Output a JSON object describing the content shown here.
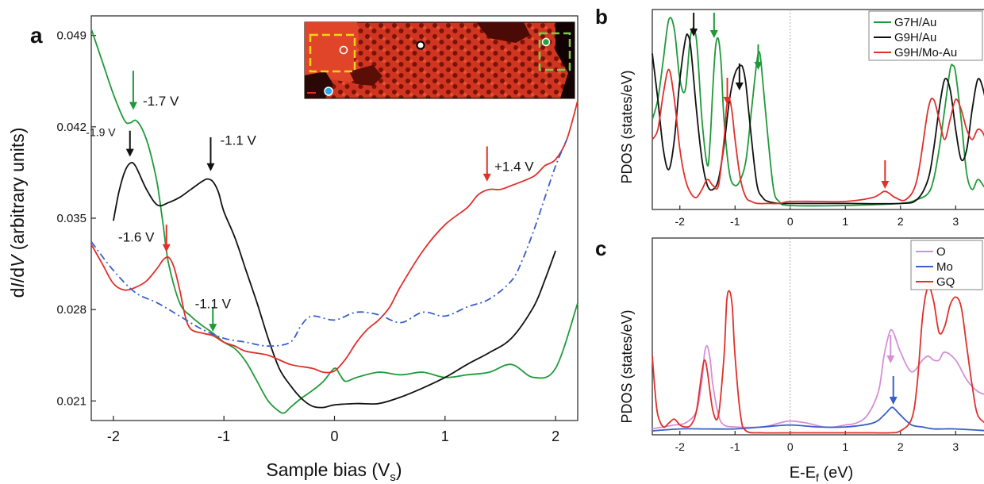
{
  "colors": {
    "green": "#1f9a3a",
    "black": "#111111",
    "red": "#e0302b",
    "blue": "#3a5fc8",
    "violet": "#d68fd6",
    "inset_bg": "#d63a22"
  },
  "chart_data": [
    {
      "id": "a",
      "panel_label": "a",
      "type": "line",
      "xlabel_main": "Sample bias (V",
      "xlabel_sub": "s",
      "xlabel_close": ")",
      "ylabel_pre": "d",
      "ylabel_I": "I",
      "ylabel_mid": "/d",
      "ylabel_V": "V",
      "ylabel_post": " (arbitrary units)",
      "xlim": [
        -2.2,
        2.2
      ],
      "ylim": [
        0.0195,
        0.0505
      ],
      "xticks": [
        -2,
        -1,
        0,
        1,
        2
      ],
      "xtick_labels": [
        "-2",
        "-1",
        "0",
        "1",
        "2"
      ],
      "yticks": [
        0.021,
        0.028,
        0.035,
        0.042,
        0.049
      ],
      "ytick_labels": [
        "0.021",
        "0.028",
        "0.035",
        "0.042",
        "0.049"
      ],
      "series": [
        {
          "color": "green",
          "style": "solid",
          "x": [
            -2.2,
            -2.1,
            -2.0,
            -1.9,
            -1.85,
            -1.8,
            -1.75,
            -1.7,
            -1.65,
            -1.6,
            -1.55,
            -1.5,
            -1.4,
            -1.3,
            -1.2,
            -1.1,
            -1.0,
            -0.9,
            -0.8,
            -0.7,
            -0.6,
            -0.5,
            -0.45,
            -0.4,
            -0.3,
            -0.2,
            -0.1,
            0.0,
            0.05,
            0.1,
            0.2,
            0.4,
            0.6,
            0.8,
            1.0,
            1.2,
            1.4,
            1.6,
            1.8,
            2.0,
            2.2
          ],
          "y": [
            0.0495,
            0.047,
            0.0445,
            0.0425,
            0.0423,
            0.0425,
            0.042,
            0.041,
            0.0395,
            0.0375,
            0.0345,
            0.0315,
            0.0285,
            0.0275,
            0.0268,
            0.0262,
            0.0255,
            0.025,
            0.024,
            0.0225,
            0.021,
            0.0202,
            0.0201,
            0.0205,
            0.0212,
            0.0218,
            0.0225,
            0.0235,
            0.023,
            0.0225,
            0.0228,
            0.0232,
            0.023,
            0.0232,
            0.0228,
            0.023,
            0.0232,
            0.0238,
            0.0228,
            0.0235,
            0.0285
          ]
        },
        {
          "color": "black",
          "style": "solid",
          "x": [
            -2.0,
            -1.95,
            -1.9,
            -1.85,
            -1.8,
            -1.7,
            -1.6,
            -1.5,
            -1.4,
            -1.3,
            -1.2,
            -1.15,
            -1.1,
            -1.05,
            -1.0,
            -0.9,
            -0.8,
            -0.7,
            -0.6,
            -0.5,
            -0.4,
            -0.3,
            -0.2,
            -0.1,
            0.0,
            0.2,
            0.4,
            0.6,
            0.8,
            1.0,
            1.2,
            1.4,
            1.6,
            1.8,
            1.9,
            2.0
          ],
          "y": [
            0.0348,
            0.037,
            0.0385,
            0.0392,
            0.039,
            0.0372,
            0.036,
            0.0362,
            0.0366,
            0.0372,
            0.0378,
            0.038,
            0.0378,
            0.037,
            0.0355,
            0.0335,
            0.031,
            0.0285,
            0.0258,
            0.0235,
            0.0222,
            0.0212,
            0.0206,
            0.0205,
            0.0207,
            0.0208,
            0.0208,
            0.0213,
            0.022,
            0.0228,
            0.0238,
            0.0247,
            0.0258,
            0.0282,
            0.0302,
            0.0325
          ]
        },
        {
          "color": "red",
          "style": "solid",
          "x": [
            -2.2,
            -2.1,
            -2.0,
            -1.9,
            -1.8,
            -1.7,
            -1.6,
            -1.55,
            -1.5,
            -1.45,
            -1.4,
            -1.35,
            -1.3,
            -1.2,
            -1.1,
            -1.0,
            -0.9,
            -0.8,
            -0.6,
            -0.4,
            -0.2,
            -0.1,
            0.0,
            0.1,
            0.2,
            0.3,
            0.4,
            0.5,
            0.6,
            0.8,
            1.0,
            1.2,
            1.3,
            1.4,
            1.5,
            1.6,
            1.8,
            1.9,
            2.0,
            2.1,
            2.2
          ],
          "y": [
            0.033,
            0.0315,
            0.03,
            0.0295,
            0.0297,
            0.0302,
            0.0312,
            0.0318,
            0.032,
            0.0312,
            0.0295,
            0.0275,
            0.0265,
            0.0262,
            0.026,
            0.0255,
            0.0252,
            0.0248,
            0.0245,
            0.0238,
            0.0235,
            0.0232,
            0.0233,
            0.0242,
            0.0255,
            0.0265,
            0.0272,
            0.0282,
            0.0298,
            0.0325,
            0.0345,
            0.0358,
            0.0368,
            0.0372,
            0.0372,
            0.0375,
            0.0382,
            0.039,
            0.0395,
            0.041,
            0.044
          ]
        },
        {
          "color": "blue",
          "style": "dashdot",
          "x": [
            -2.2,
            -2.0,
            -1.8,
            -1.6,
            -1.4,
            -1.2,
            -1.0,
            -0.8,
            -0.6,
            -0.4,
            -0.3,
            -0.2,
            0.0,
            0.2,
            0.4,
            0.6,
            0.8,
            1.0,
            1.2,
            1.4,
            1.6,
            1.7,
            1.8,
            1.9,
            2.0,
            2.1
          ],
          "y": [
            0.0332,
            0.031,
            0.0293,
            0.0285,
            0.0275,
            0.0265,
            0.0258,
            0.0255,
            0.0252,
            0.0255,
            0.0268,
            0.0275,
            0.0272,
            0.0278,
            0.0276,
            0.027,
            0.0278,
            0.0275,
            0.0282,
            0.0288,
            0.0302,
            0.0318,
            0.034,
            0.0365,
            0.039,
            0.041
          ]
        }
      ],
      "annotations": [
        {
          "text": "-1.7 V",
          "x": -1.82,
          "y": 0.0435,
          "color": "green"
        },
        {
          "text": "-1.9 V",
          "x": -1.87,
          "y": 0.0413,
          "color": "black"
        },
        {
          "text": "-1.1 V",
          "x": -1.12,
          "y": 0.0405,
          "color": "black"
        },
        {
          "text": "+1.4 V",
          "x": 1.36,
          "y": 0.0385,
          "color": "red"
        },
        {
          "text": "-1.6 V",
          "x": -1.52,
          "y": 0.0332,
          "color": "red"
        },
        {
          "text": "-1.1 V",
          "x": -1.1,
          "y": 0.0275,
          "color": "green"
        }
      ]
    },
    {
      "id": "b",
      "panel_label": "b",
      "type": "line",
      "ylabel": "PDOS (states/eV)",
      "xlim": [
        -2.5,
        3.6
      ],
      "ylim": [
        0,
        1.0
      ],
      "xticks": [
        -2,
        -1,
        0,
        1,
        2,
        3
      ],
      "xtick_labels": [
        "-2",
        "-1",
        "0",
        "1",
        "2",
        "3"
      ],
      "legend": [
        "G7H/Au",
        "G9H/Au",
        "G9H/Mo-Au"
      ],
      "series": [
        {
          "name": "G7H/Au",
          "color": "green",
          "x": [
            -2.5,
            -2.4,
            -2.3,
            -2.2,
            -2.1,
            -2.0,
            -1.9,
            -1.8,
            -1.7,
            -1.6,
            -1.5,
            -1.45,
            -1.4,
            -1.35,
            -1.3,
            -1.25,
            -1.2,
            -1.1,
            -1.0,
            -0.9,
            -0.8,
            -0.7,
            -0.6,
            -0.55,
            -0.5,
            -0.4,
            -0.3,
            -0.2,
            0.0,
            1.0,
            2.0,
            2.3,
            2.5,
            2.6,
            2.7,
            2.8,
            2.9,
            2.95,
            3.0,
            3.1,
            3.2,
            3.3,
            3.4,
            3.5,
            3.6
          ],
          "y": [
            0.45,
            0.55,
            0.75,
            0.95,
            0.9,
            0.65,
            0.6,
            0.88,
            0.85,
            0.45,
            0.22,
            0.35,
            0.62,
            0.82,
            0.85,
            0.72,
            0.45,
            0.18,
            0.12,
            0.15,
            0.25,
            0.5,
            0.75,
            0.78,
            0.65,
            0.35,
            0.1,
            0.04,
            0.02,
            0.02,
            0.03,
            0.05,
            0.08,
            0.15,
            0.3,
            0.5,
            0.7,
            0.72,
            0.68,
            0.45,
            0.18,
            0.1,
            0.15,
            0.12,
            0.08
          ]
        },
        {
          "name": "G9H/Au",
          "color": "black",
          "x": [
            -2.5,
            -2.4,
            -2.3,
            -2.2,
            -2.1,
            -2.0,
            -1.9,
            -1.85,
            -1.8,
            -1.7,
            -1.6,
            -1.5,
            -1.4,
            -1.3,
            -1.2,
            -1.1,
            -1.0,
            -0.9,
            -0.85,
            -0.8,
            -0.7,
            -0.6,
            -0.5,
            -0.4,
            -0.2,
            0.0,
            1.0,
            2.0,
            2.3,
            2.5,
            2.6,
            2.7,
            2.8,
            2.9,
            3.0,
            3.1,
            3.2,
            3.3,
            3.4,
            3.5,
            3.6
          ],
          "y": [
            0.78,
            0.55,
            0.3,
            0.2,
            0.35,
            0.65,
            0.85,
            0.87,
            0.8,
            0.5,
            0.25,
            0.12,
            0.1,
            0.15,
            0.32,
            0.55,
            0.68,
            0.72,
            0.7,
            0.62,
            0.35,
            0.12,
            0.06,
            0.04,
            0.03,
            0.03,
            0.03,
            0.03,
            0.05,
            0.15,
            0.3,
            0.5,
            0.65,
            0.6,
            0.4,
            0.25,
            0.3,
            0.5,
            0.65,
            0.6,
            0.45
          ]
        },
        {
          "name": "G9H/Mo-Au",
          "color": "red",
          "x": [
            -2.5,
            -2.4,
            -2.3,
            -2.2,
            -2.1,
            -2.0,
            -1.9,
            -1.8,
            -1.7,
            -1.6,
            -1.5,
            -1.4,
            -1.3,
            -1.2,
            -1.15,
            -1.1,
            -1.05,
            -1.0,
            -0.9,
            -0.8,
            -0.7,
            -0.6,
            -0.4,
            -0.2,
            0.0,
            0.5,
            1.0,
            1.5,
            1.7,
            1.8,
            1.9,
            2.1,
            2.3,
            2.5,
            2.6,
            2.7,
            2.8,
            2.9,
            3.0,
            3.1,
            3.2,
            3.3,
            3.4,
            3.5,
            3.6
          ],
          "y": [
            0.35,
            0.4,
            0.58,
            0.7,
            0.55,
            0.3,
            0.15,
            0.08,
            0.06,
            0.1,
            0.15,
            0.12,
            0.12,
            0.35,
            0.52,
            0.55,
            0.48,
            0.35,
            0.15,
            0.06,
            0.04,
            0.03,
            0.03,
            0.03,
            0.04,
            0.04,
            0.04,
            0.06,
            0.09,
            0.08,
            0.06,
            0.05,
            0.15,
            0.5,
            0.55,
            0.45,
            0.35,
            0.45,
            0.55,
            0.5,
            0.4,
            0.35,
            0.4,
            0.38,
            0.3
          ]
        }
      ],
      "arrows": [
        {
          "x": -1.75,
          "color": "black"
        },
        {
          "x": -1.38,
          "color": "green"
        },
        {
          "x": -0.92,
          "color": "black"
        },
        {
          "x": -0.58,
          "color": "green"
        },
        {
          "x": -1.14,
          "color": "red"
        },
        {
          "x": 1.72,
          "color": "red"
        }
      ]
    },
    {
      "id": "c",
      "panel_label": "c",
      "type": "line",
      "ylabel": "PDOS (states/eV)",
      "xlabel_main": "E-E",
      "xlabel_sub": "f",
      "xlabel_close": " (eV)",
      "xlim": [
        -2.5,
        3.6
      ],
      "ylim": [
        0,
        1.0
      ],
      "xticks": [
        -2,
        -1,
        0,
        1,
        2,
        3
      ],
      "xtick_labels": [
        "-2",
        "-1",
        "0",
        "1",
        "2",
        "3"
      ],
      "legend": [
        "O",
        "Mo",
        "GQ"
      ],
      "series": [
        {
          "name": "O",
          "color": "violet",
          "x": [
            -2.5,
            -2.3,
            -2.1,
            -1.9,
            -1.7,
            -1.6,
            -1.55,
            -1.5,
            -1.45,
            -1.4,
            -1.3,
            -1.2,
            -1.0,
            -0.5,
            -0.2,
            0.0,
            0.3,
            0.6,
            0.8,
            1.0,
            1.2,
            1.4,
            1.6,
            1.7,
            1.8,
            1.85,
            1.9,
            2.0,
            2.2,
            2.4,
            2.5,
            2.6,
            2.7,
            2.8,
            3.0,
            3.2,
            3.4,
            3.6
          ],
          "y": [
            0.03,
            0.04,
            0.05,
            0.06,
            0.12,
            0.28,
            0.42,
            0.45,
            0.38,
            0.25,
            0.1,
            0.05,
            0.04,
            0.04,
            0.06,
            0.07,
            0.06,
            0.04,
            0.04,
            0.05,
            0.06,
            0.1,
            0.22,
            0.4,
            0.52,
            0.53,
            0.5,
            0.42,
            0.32,
            0.38,
            0.4,
            0.38,
            0.38,
            0.42,
            0.38,
            0.28,
            0.22,
            0.2
          ]
        },
        {
          "name": "Mo",
          "color": "blue",
          "x": [
            -2.5,
            -2.0,
            -1.5,
            -1.0,
            -0.5,
            0.0,
            0.5,
            1.0,
            1.5,
            1.7,
            1.8,
            1.85,
            1.9,
            2.0,
            2.2,
            2.4,
            2.6,
            3.0,
            3.6
          ],
          "y": [
            0.02,
            0.03,
            0.03,
            0.03,
            0.04,
            0.05,
            0.04,
            0.04,
            0.06,
            0.1,
            0.13,
            0.14,
            0.13,
            0.1,
            0.05,
            0.04,
            0.03,
            0.03,
            0.02
          ]
        },
        {
          "name": "GQ",
          "color": "red",
          "x": [
            -2.5,
            -2.45,
            -2.4,
            -2.3,
            -2.2,
            -2.1,
            -2.0,
            -1.9,
            -1.8,
            -1.7,
            -1.6,
            -1.55,
            -1.5,
            -1.4,
            -1.3,
            -1.2,
            -1.15,
            -1.1,
            -1.05,
            -1.0,
            -0.9,
            -0.8,
            -0.5,
            0.0,
            1.0,
            1.5,
            1.8,
            2.0,
            2.2,
            2.3,
            2.4,
            2.5,
            2.6,
            2.7,
            2.8,
            2.9,
            3.0,
            3.1,
            3.2,
            3.3,
            3.4,
            3.6
          ],
          "y": [
            0.4,
            0.22,
            0.1,
            0.04,
            0.06,
            0.08,
            0.05,
            0.04,
            0.05,
            0.12,
            0.32,
            0.38,
            0.32,
            0.12,
            0.1,
            0.4,
            0.68,
            0.73,
            0.65,
            0.4,
            0.1,
            0.02,
            0.01,
            0.01,
            0.01,
            0.01,
            0.01,
            0.02,
            0.08,
            0.25,
            0.6,
            0.75,
            0.68,
            0.52,
            0.55,
            0.66,
            0.7,
            0.65,
            0.45,
            0.25,
            0.1,
            0.05
          ]
        }
      ],
      "arrows": [
        {
          "x": 1.82,
          "color": "violet"
        },
        {
          "x": 1.87,
          "color": "blue"
        }
      ]
    }
  ]
}
